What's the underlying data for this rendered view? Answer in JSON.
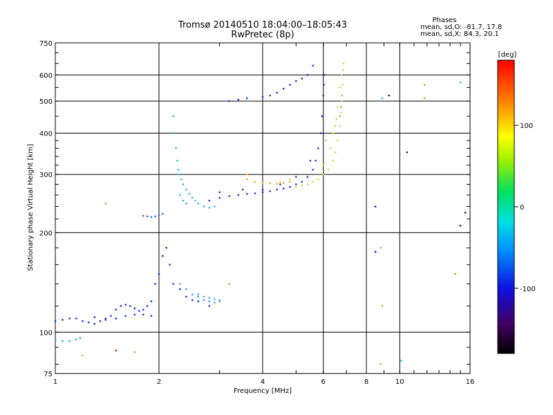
{
  "chart_data": {
    "type": "scatter",
    "title": "Tromsø 20140510 18:04:00–18:05:43",
    "subtitle": "RwPretec (8p)",
    "xlabel": "Frequency [MHz]",
    "ylabel": "Stationary phase Virtual Height [km]",
    "x_scale": "log",
    "y_scale": "log",
    "xlim": [
      1,
      16
    ],
    "ylim": [
      75,
      750
    ],
    "x_ticks": [
      1,
      2,
      4,
      6,
      8,
      10,
      16
    ],
    "y_ticks": [
      75,
      100,
      200,
      300,
      400,
      500,
      600,
      750
    ],
    "grid": true,
    "phase_stats": {
      "heading": "Phases",
      "line_o": "mean, sd,O: -81.7, 17.8",
      "line_x": "mean, sd,X:  84.3, 20.1"
    },
    "colorbar": {
      "label": "[deg]",
      "range": [
        -180,
        180
      ],
      "ticks": [
        100,
        0,
        -100
      ]
    },
    "series": [
      {
        "color": "#1030e0",
        "points": [
          [
            1.0,
            108
          ],
          [
            1.05,
            109
          ],
          [
            1.1,
            110
          ],
          [
            1.15,
            110
          ],
          [
            1.2,
            108
          ],
          [
            1.25,
            107
          ],
          [
            1.3,
            106
          ],
          [
            1.35,
            108
          ],
          [
            1.4,
            110
          ],
          [
            1.45,
            112
          ],
          [
            1.5,
            117
          ],
          [
            1.55,
            120
          ],
          [
            1.6,
            121
          ],
          [
            1.65,
            120
          ],
          [
            1.7,
            118
          ],
          [
            1.75,
            116
          ],
          [
            1.8,
            117
          ],
          [
            1.85,
            120
          ],
          [
            1.9,
            124
          ],
          [
            1.95,
            140
          ],
          [
            2.0,
            150
          ],
          [
            2.05,
            170
          ],
          [
            2.1,
            180
          ],
          [
            2.15,
            160
          ],
          [
            2.2,
            140
          ],
          [
            2.3,
            135
          ],
          [
            2.4,
            128
          ],
          [
            2.5,
            125
          ],
          [
            2.6,
            124
          ],
          [
            2.8,
            120
          ],
          [
            1.3,
            111
          ],
          [
            1.4,
            109
          ],
          [
            1.5,
            110
          ],
          [
            1.6,
            112
          ],
          [
            1.7,
            113
          ],
          [
            1.8,
            113
          ],
          [
            1.9,
            112
          ]
        ]
      },
      {
        "color": "#30a0f0",
        "points": [
          [
            1.0,
            95
          ],
          [
            1.05,
            94
          ],
          [
            1.1,
            94
          ],
          [
            1.15,
            95
          ],
          [
            1.18,
            96
          ],
          [
            2.3,
            140
          ],
          [
            2.4,
            135
          ],
          [
            2.5,
            130
          ],
          [
            2.6,
            128
          ],
          [
            2.7,
            125
          ],
          [
            2.8,
            124
          ],
          [
            2.9,
            123
          ],
          [
            3.0,
            124
          ]
        ]
      },
      {
        "color": "#2a6af0",
        "points": [
          [
            1.8,
            225
          ],
          [
            1.85,
            224
          ],
          [
            1.9,
            223
          ],
          [
            1.95,
            224
          ],
          [
            2.0,
            226
          ],
          [
            2.05,
            228
          ]
        ]
      },
      {
        "color": "#28b8e8",
        "points": [
          [
            2.2,
            450
          ],
          [
            2.22,
            400
          ],
          [
            2.24,
            360
          ],
          [
            2.26,
            330
          ],
          [
            2.28,
            310
          ],
          [
            2.3,
            300
          ],
          [
            2.32,
            290
          ],
          [
            2.35,
            280
          ],
          [
            2.4,
            270
          ],
          [
            2.45,
            262
          ],
          [
            2.5,
            255
          ],
          [
            2.55,
            250
          ],
          [
            2.6,
            245
          ],
          [
            2.7,
            240
          ],
          [
            2.8,
            238
          ],
          [
            2.9,
            240
          ],
          [
            2.3,
            260
          ],
          [
            2.35,
            250
          ],
          [
            2.4,
            245
          ]
        ]
      },
      {
        "color": "#1838d8",
        "points": [
          [
            2.8,
            250
          ],
          [
            3.0,
            255
          ],
          [
            3.2,
            258
          ],
          [
            3.4,
            260
          ],
          [
            3.6,
            262
          ],
          [
            3.8,
            263
          ],
          [
            4.0,
            265
          ],
          [
            4.2,
            267
          ],
          [
            4.4,
            270
          ],
          [
            4.6,
            272
          ],
          [
            4.8,
            275
          ],
          [
            5.0,
            280
          ],
          [
            5.2,
            285
          ],
          [
            5.4,
            295
          ],
          [
            5.6,
            310
          ],
          [
            5.7,
            330
          ],
          [
            5.8,
            360
          ],
          [
            5.9,
            400
          ],
          [
            5.95,
            450
          ],
          [
            6.0,
            520
          ],
          [
            6.02,
            560
          ],
          [
            6.04,
            600
          ],
          [
            3.2,
            500
          ],
          [
            3.4,
            505
          ],
          [
            3.6,
            510
          ],
          [
            4.0,
            515
          ],
          [
            4.2,
            520
          ],
          [
            4.4,
            530
          ],
          [
            4.6,
            545
          ],
          [
            4.8,
            560
          ],
          [
            5.0,
            575
          ],
          [
            5.2,
            585
          ],
          [
            5.4,
            600
          ],
          [
            5.6,
            640
          ],
          [
            4.0,
            270
          ],
          [
            4.5,
            280
          ],
          [
            5.0,
            295
          ],
          [
            5.5,
            330
          ],
          [
            3.5,
            270
          ],
          [
            3.0,
            265
          ]
        ]
      },
      {
        "color": "#c8e040",
        "points": [
          [
            5.0,
            275
          ],
          [
            5.2,
            278
          ],
          [
            5.4,
            280
          ],
          [
            5.6,
            285
          ],
          [
            5.8,
            290
          ],
          [
            6.0,
            300
          ],
          [
            6.2,
            310
          ],
          [
            6.4,
            330
          ],
          [
            6.5,
            350
          ],
          [
            6.6,
            380
          ],
          [
            6.7,
            420
          ],
          [
            6.75,
            460
          ],
          [
            6.8,
            500
          ],
          [
            6.82,
            560
          ],
          [
            6.85,
            620
          ],
          [
            6.87,
            650
          ],
          [
            6.0,
            320
          ],
          [
            6.3,
            360
          ],
          [
            6.5,
            420
          ],
          [
            6.6,
            480
          ],
          [
            6.7,
            550
          ],
          [
            6.78,
            600
          ]
        ]
      },
      {
        "color": "#f0a030",
        "points": [
          [
            3.6,
            290
          ],
          [
            3.8,
            285
          ],
          [
            4.0,
            283
          ],
          [
            4.2,
            282
          ],
          [
            4.4,
            281
          ],
          [
            4.6,
            283
          ],
          [
            4.8,
            285
          ],
          [
            6.7,
            450
          ],
          [
            6.75,
            480
          ],
          [
            6.8,
            520
          ]
        ]
      },
      {
        "color": "#e8d020",
        "points": [
          [
            4.0,
            283
          ],
          [
            4.5,
            285
          ],
          [
            3.6,
            300
          ],
          [
            4.8,
            290
          ],
          [
            6.1,
            380
          ],
          [
            6.4,
            400
          ],
          [
            6.55,
            440
          ]
        ]
      },
      {
        "color": "#40a8f0",
        "points": [
          [
            2.6,
            130
          ],
          [
            2.7,
            128
          ],
          [
            2.8,
            127
          ],
          [
            2.9,
            126
          ],
          [
            3.0,
            125
          ]
        ]
      },
      {
        "color": "#e0a020",
        "points": [
          [
            1.4,
            245
          ],
          [
            1.7,
            87
          ],
          [
            1.2,
            85
          ],
          [
            3.2,
            140
          ],
          [
            8.8,
            80
          ],
          [
            11.8,
            510
          ],
          [
            11.8,
            560
          ],
          [
            14.5,
            150
          ],
          [
            8.8,
            180
          ],
          [
            8.9,
            120
          ]
        ]
      },
      {
        "color": "#0018a0",
        "points": [
          [
            8.5,
            240
          ],
          [
            8.5,
            175
          ],
          [
            9.3,
            520
          ],
          [
            10.5,
            350
          ],
          [
            15.0,
            210
          ],
          [
            15.5,
            230
          ]
        ]
      },
      {
        "color": "#30b8f0",
        "points": [
          [
            8.9,
            510
          ],
          [
            10.1,
            82
          ],
          [
            15.0,
            570
          ]
        ]
      },
      {
        "color": "#c02020",
        "points": [
          [
            1.5,
            88
          ]
        ]
      }
    ]
  }
}
